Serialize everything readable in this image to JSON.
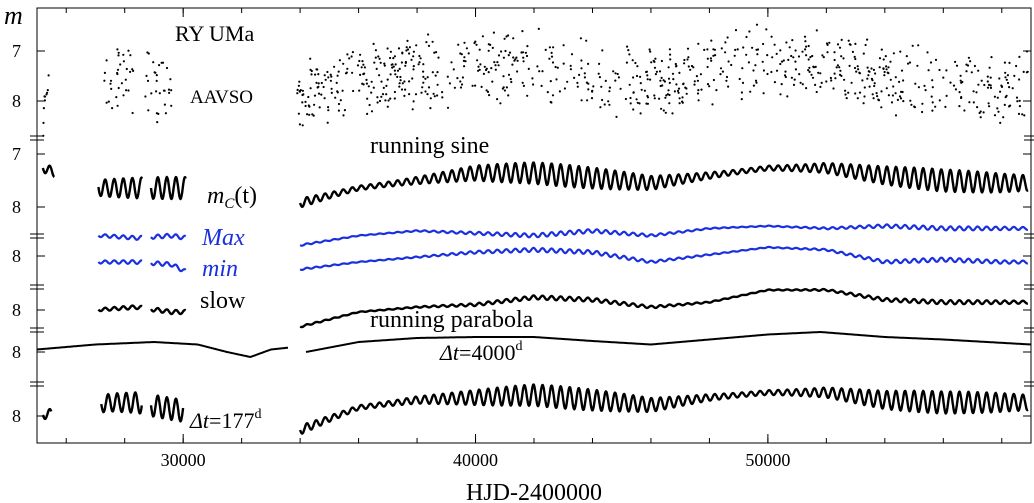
{
  "chart_data": {
    "type": "scatter",
    "title": "RY UMa",
    "xlabel": "HJD-2400000",
    "ylabel": "m",
    "xlim": [
      25000,
      59000
    ],
    "x_ticks": [
      30000,
      40000,
      50000
    ],
    "x_tick_labels": [
      "30000",
      "40000",
      "50000"
    ],
    "panels": [
      {
        "id": "aavso",
        "labels": [
          "RY UMa",
          "AAVSO"
        ],
        "y_ticks": [
          "7",
          "8"
        ],
        "y_direction": "inverted"
      },
      {
        "id": "running-sine",
        "labels": [
          "running sine",
          "m",
          "C",
          "(t)",
          "Max",
          "min",
          "slow"
        ],
        "y_ticks": [
          "7",
          "8",
          "8",
          "8"
        ],
        "y_direction": "inverted"
      },
      {
        "id": "running-parabola",
        "labels": [
          "running parabola",
          "Δt",
          "=4000",
          "d",
          "Δt",
          "=177",
          "d"
        ],
        "y_ticks": [
          "8",
          "8"
        ],
        "y_direction": "inverted"
      }
    ],
    "gaps": [
      [
        25600,
        27100
      ],
      [
        30200,
        33900
      ]
    ],
    "series": [
      {
        "name": "AAVSO",
        "style": "points",
        "color": "#000000",
        "x": [
          25200,
          27500,
          28200,
          28900,
          29500,
          34000,
          36000,
          38000,
          40000,
          42000,
          44000,
          46000,
          48000,
          50000,
          52000,
          54000,
          56000,
          58000
        ],
        "y": [
          7.9,
          7.6,
          7.5,
          7.6,
          7.7,
          7.8,
          7.5,
          7.4,
          7.3,
          7.2,
          7.4,
          7.6,
          7.3,
          7.1,
          7.2,
          7.5,
          7.6,
          7.7
        ]
      },
      {
        "name": "m_C(t)",
        "style": "line",
        "color": "#000000",
        "x": [
          25200,
          27200,
          28400,
          29600,
          30100,
          34000,
          36000,
          38000,
          40000,
          42000,
          44000,
          46000,
          48000,
          50000,
          52000,
          54000,
          56000,
          58000
        ],
        "y": [
          7.2,
          7.6,
          7.6,
          7.6,
          7.6,
          7.9,
          7.6,
          7.45,
          7.3,
          7.3,
          7.4,
          7.5,
          7.35,
          7.2,
          7.2,
          7.35,
          7.45,
          7.5
        ]
      },
      {
        "name": "Max",
        "style": "line",
        "color": "#1a2fe0",
        "x": [
          27200,
          28400,
          29600,
          30100,
          34000,
          36000,
          38000,
          40000,
          42000,
          44000,
          46000,
          48000,
          50000,
          52000,
          54000,
          56000,
          58000
        ],
        "y": [
          7.95,
          8.0,
          7.95,
          8.0,
          8.15,
          7.95,
          7.85,
          7.9,
          7.95,
          7.85,
          7.95,
          7.8,
          7.75,
          7.8,
          7.75,
          7.8,
          7.8
        ]
      },
      {
        "name": "min",
        "style": "line",
        "color": "#1a2fe0",
        "x": [
          27200,
          28400,
          29600,
          30100,
          34000,
          36000,
          38000,
          40000,
          42000,
          44000,
          46000,
          48000,
          50000,
          52000,
          54000,
          56000,
          58000
        ],
        "y": [
          8.0,
          8.0,
          8.05,
          8.2,
          8.15,
          8.0,
          7.9,
          7.8,
          7.75,
          7.8,
          8.0,
          7.85,
          7.7,
          7.75,
          8.0,
          7.95,
          8.0
        ]
      },
      {
        "name": "slow",
        "style": "line",
        "color": "#000000",
        "x": [
          27200,
          28400,
          29600,
          30100,
          34000,
          36000,
          38000,
          40000,
          42000,
          44000,
          46000,
          48000,
          50000,
          52000,
          54000,
          56000,
          58000
        ],
        "y": [
          7.95,
          7.9,
          8.0,
          8.0,
          8.3,
          8.0,
          7.9,
          7.85,
          7.7,
          7.75,
          7.9,
          7.8,
          7.55,
          7.55,
          7.75,
          7.8,
          7.8
        ]
      },
      {
        "name": "running parabola Δt=4000d",
        "style": "line",
        "color": "#000000",
        "x": [
          25000,
          27000,
          29000,
          30500,
          31500,
          32300,
          33000,
          33800,
          34200,
          36000,
          38000,
          40000,
          42000,
          44000,
          46000,
          48000,
          50000,
          51800,
          54000,
          56000,
          59000
        ],
        "y": [
          7.95,
          7.85,
          7.8,
          7.85,
          8.0,
          8.1,
          7.95,
          7.9,
          8.0,
          7.8,
          7.72,
          7.7,
          7.7,
          7.78,
          7.85,
          7.75,
          7.65,
          7.6,
          7.7,
          7.75,
          7.85
        ]
      },
      {
        "name": "Δt=177d",
        "style": "line",
        "color": "#000000",
        "x": [
          25200,
          27500,
          28400,
          29300,
          34000,
          36000,
          38000,
          40000,
          42000,
          44000,
          46000,
          48000,
          50000,
          52000,
          54000,
          56000,
          58000
        ],
        "y": [
          8.0,
          7.75,
          7.75,
          7.85,
          8.3,
          7.85,
          7.7,
          7.65,
          7.6,
          7.7,
          7.8,
          7.65,
          7.55,
          7.55,
          7.7,
          7.75,
          7.75
        ]
      }
    ]
  }
}
